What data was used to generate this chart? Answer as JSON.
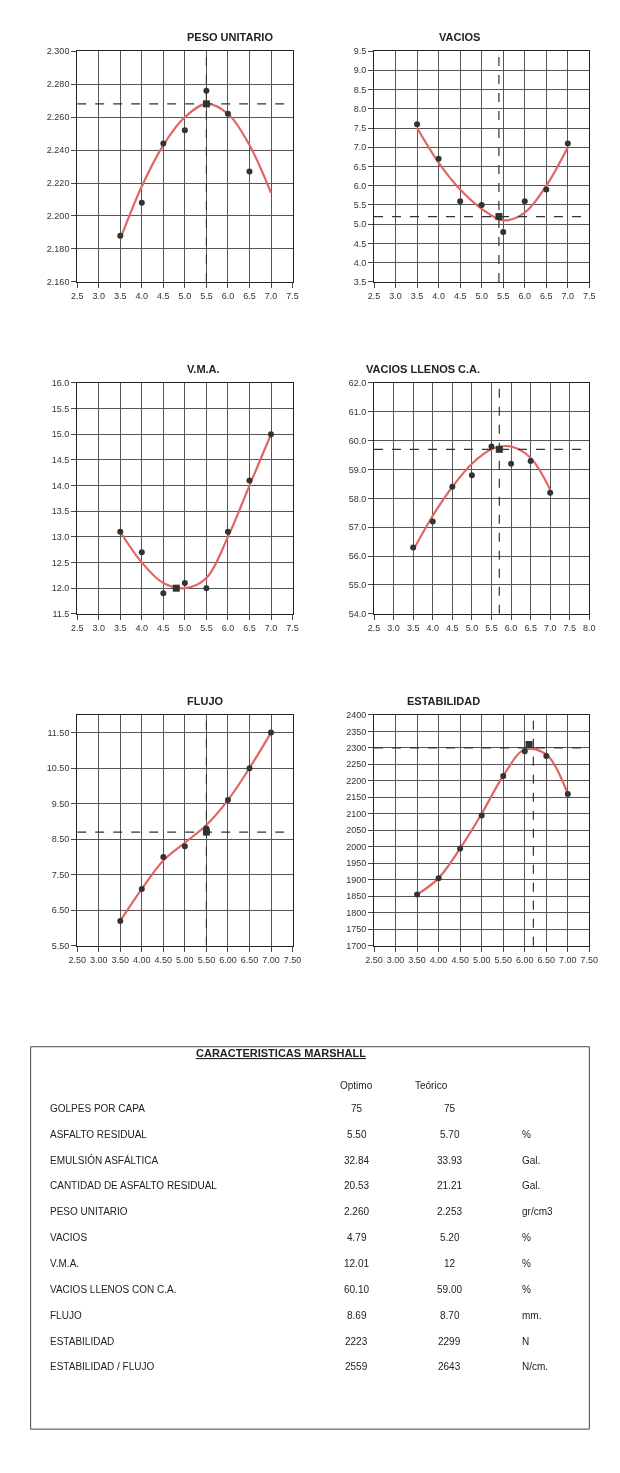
{
  "chart_data": [
    {
      "type": "scatter",
      "title": "PESO UNITARIO",
      "x": [
        3.5,
        4.0,
        4.5,
        5.0,
        5.5,
        6.0,
        6.5
      ],
      "xlim": [
        2.5,
        7.5
      ],
      "xticks": [
        {
          "value": 2.5,
          "label": "2.5"
        },
        {
          "value": 3,
          "label": "3.0"
        },
        {
          "value": 3.5,
          "label": "3.5"
        },
        {
          "value": 4,
          "label": "4.0"
        },
        {
          "value": 4.5,
          "label": "4.5"
        },
        {
          "value": 5,
          "label": "5.0"
        },
        {
          "value": 5.5,
          "label": "5.5"
        },
        {
          "value": 6,
          "label": "6.0"
        },
        {
          "value": 6.5,
          "label": "6.5"
        },
        {
          "value": 7,
          "label": "7.0"
        },
        {
          "value": 7.5,
          "label": "7.5"
        }
      ],
      "ylim": [
        2.16,
        2.3
      ],
      "yticks": [
        {
          "value": 2.16,
          "label": "2.160"
        },
        {
          "value": 2.18,
          "label": "2.180"
        },
        {
          "value": 2.2,
          "label": "2.200"
        },
        {
          "value": 2.22,
          "label": "2.220"
        },
        {
          "value": 2.24,
          "label": "2.240"
        },
        {
          "value": 2.26,
          "label": "2.260"
        },
        {
          "value": 2.28,
          "label": "2.280"
        },
        {
          "value": 2.3,
          "label": "2.300"
        }
      ],
      "grid": true,
      "series": [
        {
          "type": "line",
          "color": "#e06666",
          "x": [
            3.5,
            4.0,
            4.5,
            5.0,
            5.5,
            6.0,
            6.5,
            7.0
          ],
          "values": [
            2.186,
            2.218,
            2.243,
            2.26,
            2.268,
            2.262,
            2.243,
            2.214
          ],
          "marker": "none"
        },
        {
          "type": "scatter",
          "color": "#333333",
          "values": [
            2.188,
            2.208,
            2.244,
            2.252,
            2.276,
            2.262,
            2.227
          ],
          "marker": "circle"
        },
        {
          "type": "scatter",
          "color": "#333333",
          "x": [
            5.5
          ],
          "values": [
            2.268
          ],
          "marker": "square"
        }
      ],
      "ref_lines": [
        {
          "axis": "y",
          "value": 2.268,
          "line_style": "dashed",
          "color": "#333333"
        },
        {
          "axis": "x",
          "value": 5.5,
          "line_style": "dashed",
          "color": "#333333"
        }
      ]
    },
    {
      "type": "scatter",
      "title": "VACIOS",
      "x": [
        3.5,
        4.0,
        4.5,
        5.0,
        5.5,
        6.0,
        6.5,
        7.0
      ],
      "xlim": [
        2.5,
        7.5
      ],
      "xticks": [
        {
          "value": 2.5,
          "label": "2.5"
        },
        {
          "value": 3,
          "label": "3.0"
        },
        {
          "value": 3.5,
          "label": "3.5"
        },
        {
          "value": 4,
          "label": "4.0"
        },
        {
          "value": 4.5,
          "label": "4.5"
        },
        {
          "value": 5,
          "label": "5.0"
        },
        {
          "value": 5.5,
          "label": "5.5"
        },
        {
          "value": 6,
          "label": "6.0"
        },
        {
          "value": 6.5,
          "label": "6.5"
        },
        {
          "value": 7,
          "label": "7.0"
        },
        {
          "value": 7.5,
          "label": "7.5"
        }
      ],
      "ylim": [
        3.5,
        9.5
      ],
      "yticks": [
        {
          "value": 3.5,
          "label": "3.5"
        },
        {
          "value": 4,
          "label": "4.0"
        },
        {
          "value": 4.5,
          "label": "4.5"
        },
        {
          "value": 5,
          "label": "5.0"
        },
        {
          "value": 5.5,
          "label": "5.5"
        },
        {
          "value": 6,
          "label": "6.0"
        },
        {
          "value": 6.5,
          "label": "6.5"
        },
        {
          "value": 7,
          "label": "7.0"
        },
        {
          "value": 7.5,
          "label": "7.5"
        },
        {
          "value": 8,
          "label": "8.0"
        },
        {
          "value": 8.5,
          "label": "8.5"
        },
        {
          "value": 9,
          "label": "9.0"
        },
        {
          "value": 9.5,
          "label": "9.5"
        }
      ],
      "grid": true,
      "series": [
        {
          "type": "line",
          "color": "#e06666",
          "x": [
            3.5,
            4.0,
            4.5,
            5.0,
            5.5,
            6.0,
            6.5,
            7.0
          ],
          "values": [
            7.5,
            6.6,
            5.9,
            5.4,
            5.1,
            5.3,
            6.0,
            7.0
          ],
          "marker": "none"
        },
        {
          "type": "scatter",
          "color": "#333333",
          "values": [
            7.6,
            6.7,
            5.6,
            5.5,
            4.8,
            5.6,
            5.9,
            7.1
          ],
          "marker": "circle"
        },
        {
          "type": "scatter",
          "color": "#333333",
          "x": [
            5.4
          ],
          "values": [
            5.2
          ],
          "marker": "square"
        }
      ],
      "ref_lines": [
        {
          "axis": "y",
          "value": 5.2,
          "line_style": "dashed",
          "color": "#333333"
        },
        {
          "axis": "x",
          "value": 5.4,
          "line_style": "dashed",
          "color": "#333333"
        }
      ]
    },
    {
      "type": "scatter",
      "title": "V.M.A.",
      "x": [
        3.5,
        4.0,
        4.5,
        5.0,
        5.5,
        6.0,
        6.5,
        7.0
      ],
      "xlim": [
        2.5,
        7.5
      ],
      "xticks": [
        {
          "value": 2.5,
          "label": "2.5"
        },
        {
          "value": 3,
          "label": "3.0"
        },
        {
          "value": 3.5,
          "label": "3.5"
        },
        {
          "value": 4,
          "label": "4.0"
        },
        {
          "value": 4.5,
          "label": "4.5"
        },
        {
          "value": 5,
          "label": "5.0"
        },
        {
          "value": 5.5,
          "label": "5.5"
        },
        {
          "value": 6,
          "label": "6.0"
        },
        {
          "value": 6.5,
          "label": "6.5"
        },
        {
          "value": 7,
          "label": "7.0"
        },
        {
          "value": 7.5,
          "label": "7.5"
        }
      ],
      "ylim": [
        11.5,
        16.0
      ],
      "yticks": [
        {
          "value": 11.5,
          "label": "11.5"
        },
        {
          "value": 12,
          "label": "12.0"
        },
        {
          "value": 12.5,
          "label": "12.5"
        },
        {
          "value": 13,
          "label": "13.0"
        },
        {
          "value": 13.5,
          "label": "13.5"
        },
        {
          "value": 14,
          "label": "14.0"
        },
        {
          "value": 14.5,
          "label": "14.5"
        },
        {
          "value": 15,
          "label": "15.0"
        },
        {
          "value": 15.5,
          "label": "15.5"
        },
        {
          "value": 16,
          "label": "16.0"
        }
      ],
      "grid": true,
      "series": [
        {
          "type": "line",
          "color": "#e06666",
          "x": [
            3.5,
            4.0,
            4.5,
            5.0,
            5.5,
            6.0,
            6.5,
            7.0
          ],
          "values": [
            13.1,
            12.5,
            12.1,
            12.0,
            12.2,
            13.0,
            14.0,
            15.0
          ],
          "marker": "none"
        },
        {
          "type": "scatter",
          "color": "#333333",
          "values": [
            13.1,
            12.7,
            11.9,
            12.1,
            12.0,
            13.1,
            14.1,
            15.0
          ],
          "marker": "circle"
        },
        {
          "type": "scatter",
          "color": "#333333",
          "x": [
            4.8
          ],
          "values": [
            12.0
          ],
          "marker": "square"
        }
      ]
    },
    {
      "type": "scatter",
      "title": "VACIOS LLENOS C.A.",
      "x": [
        3.5,
        4.0,
        4.5,
        5.0,
        5.5,
        6.0,
        6.5,
        7.0
      ],
      "xlim": [
        2.5,
        8.0
      ],
      "xticks": [
        {
          "value": 2.5,
          "label": "2.5"
        },
        {
          "value": 3,
          "label": "3.0"
        },
        {
          "value": 3.5,
          "label": "3.5"
        },
        {
          "value": 4,
          "label": "4.0"
        },
        {
          "value": 4.5,
          "label": "4.5"
        },
        {
          "value": 5,
          "label": "5.0"
        },
        {
          "value": 5.5,
          "label": "5.5"
        },
        {
          "value": 6,
          "label": "6.0"
        },
        {
          "value": 6.5,
          "label": "6.5"
        },
        {
          "value": 7,
          "label": "7.0"
        },
        {
          "value": 7.5,
          "label": "7.5"
        },
        {
          "value": 8,
          "label": "8.0"
        }
      ],
      "ylim": [
        54.0,
        62.0
      ],
      "yticks": [
        {
          "value": 54,
          "label": "54.0"
        },
        {
          "value": 55,
          "label": "55.0"
        },
        {
          "value": 56,
          "label": "56.0"
        },
        {
          "value": 57,
          "label": "57.0"
        },
        {
          "value": 58,
          "label": "58.0"
        },
        {
          "value": 59,
          "label": "59.0"
        },
        {
          "value": 60,
          "label": "60.0"
        },
        {
          "value": 61,
          "label": "61.0"
        },
        {
          "value": 62,
          "label": "62.0"
        }
      ],
      "grid": true,
      "series": [
        {
          "type": "line",
          "color": "#e06666",
          "x": [
            3.5,
            4.0,
            4.5,
            5.0,
            5.5,
            6.0,
            6.5,
            7.0
          ],
          "values": [
            56.2,
            57.4,
            58.4,
            59.2,
            59.7,
            59.8,
            59.4,
            58.3
          ],
          "marker": "none"
        },
        {
          "type": "scatter",
          "color": "#333333",
          "values": [
            56.3,
            57.2,
            58.4,
            58.8,
            59.8,
            59.2,
            59.3,
            58.2
          ],
          "marker": "circle"
        },
        {
          "type": "scatter",
          "color": "#333333",
          "x": [
            5.7
          ],
          "values": [
            59.7
          ],
          "marker": "square"
        }
      ],
      "ref_lines": [
        {
          "axis": "y",
          "value": 59.7,
          "line_style": "dashed",
          "color": "#333333"
        },
        {
          "axis": "x",
          "value": 5.7,
          "line_style": "dashed",
          "color": "#333333"
        }
      ]
    },
    {
      "type": "scatter",
      "title": "FLUJO",
      "x": [
        3.5,
        4.0,
        4.5,
        5.0,
        5.5,
        6.0,
        6.5,
        7.0
      ],
      "xlim": [
        2.5,
        7.5
      ],
      "xticks": [
        {
          "value": 2.5,
          "label": "2.50"
        },
        {
          "value": 3.0,
          "label": "3.00"
        },
        {
          "value": 3.5,
          "label": "3.50"
        },
        {
          "value": 4.0,
          "label": "4.00"
        },
        {
          "value": 4.5,
          "label": "4.50"
        },
        {
          "value": 5.0,
          "label": "5.00"
        },
        {
          "value": 5.5,
          "label": "5.50"
        },
        {
          "value": 6.0,
          "label": "6.00"
        },
        {
          "value": 6.5,
          "label": "6.50"
        },
        {
          "value": 7.0,
          "label": "7.00"
        },
        {
          "value": 7.5,
          "label": "7.50"
        }
      ],
      "ylim": [
        5.5,
        12.0
      ],
      "yticks": [
        {
          "value": 5.5,
          "label": "5.50"
        },
        {
          "value": 6.5,
          "label": "6.50"
        },
        {
          "value": 7.5,
          "label": "7.50"
        },
        {
          "value": 8.5,
          "label": "8.50"
        },
        {
          "value": 9.5,
          "label": "9.50"
        },
        {
          "value": 10.5,
          "label": "10.50"
        },
        {
          "value": 11.5,
          "label": "11.50"
        }
      ],
      "grid": true,
      "series": [
        {
          "type": "line",
          "color": "#e06666",
          "x": [
            3.5,
            4.0,
            4.5,
            5.0,
            5.5,
            6.0,
            6.5,
            7.0
          ],
          "values": [
            6.2,
            7.1,
            7.9,
            8.4,
            8.9,
            9.6,
            10.5,
            11.5
          ],
          "marker": "none"
        },
        {
          "type": "scatter",
          "color": "#333333",
          "values": [
            6.2,
            7.1,
            8.0,
            8.3,
            8.8,
            9.6,
            10.5,
            11.5
          ],
          "marker": "circle"
        },
        {
          "type": "scatter",
          "color": "#333333",
          "x": [
            5.5
          ],
          "values": [
            8.7
          ],
          "marker": "square"
        }
      ],
      "ref_lines": [
        {
          "axis": "y",
          "value": 8.7,
          "line_style": "dashed",
          "color": "#333333"
        },
        {
          "axis": "x",
          "value": 5.5,
          "line_style": "dashed",
          "color": "#333333"
        }
      ]
    },
    {
      "type": "scatter",
      "title": "ESTABILIDAD",
      "x": [
        3.5,
        4.0,
        4.5,
        5.0,
        5.5,
        6.0,
        6.5,
        7.0
      ],
      "xlim": [
        2.5,
        7.5
      ],
      "xticks": [
        {
          "value": 2.5,
          "label": "2.50"
        },
        {
          "value": 3.0,
          "label": "3.00"
        },
        {
          "value": 3.5,
          "label": "3.50"
        },
        {
          "value": 4.0,
          "label": "4.00"
        },
        {
          "value": 4.5,
          "label": "4.50"
        },
        {
          "value": 5.0,
          "label": "5.00"
        },
        {
          "value": 5.5,
          "label": "5.50"
        },
        {
          "value": 6.0,
          "label": "6.00"
        },
        {
          "value": 6.5,
          "label": "6.50"
        },
        {
          "value": 7.0,
          "label": "7.00"
        },
        {
          "value": 7.5,
          "label": "7.50"
        }
      ],
      "ylim": [
        1700,
        2400
      ],
      "yticks": [
        1700,
        1750,
        1800,
        1850,
        1900,
        1950,
        2000,
        2050,
        2100,
        2150,
        2200,
        2250,
        2300,
        2350,
        2400
      ],
      "grid": true,
      "series": [
        {
          "type": "line",
          "color": "#e06666",
          "x": [
            3.5,
            4.0,
            4.5,
            5.0,
            5.5,
            6.0,
            6.5,
            7.0
          ],
          "values": [
            1855,
            1905,
            1995,
            2100,
            2215,
            2295,
            2280,
            2160
          ],
          "marker": "none"
        },
        {
          "type": "scatter",
          "color": "#333333",
          "values": [
            1855,
            1905,
            1995,
            2095,
            2215,
            2290,
            2275,
            2160
          ],
          "marker": "circle"
        },
        {
          "type": "scatter",
          "color": "#333333",
          "x": [
            6.1
          ],
          "values": [
            2310
          ],
          "marker": "square"
        }
      ],
      "ref_lines": [
        {
          "axis": "y",
          "value": 2300,
          "line_style": "dashed",
          "color": "#333333"
        },
        {
          "axis": "x",
          "value": 6.2,
          "line_style": "dashed",
          "color": "#333333"
        }
      ]
    },
    {
      "type": "other",
      "title": "CARACTERISTICAS MARSHALL",
      "categories": [
        "GOLPES POR CAPA",
        "ASFALTO RESIDUAL",
        "EMULSIÓN ASFÁLTICA",
        "CANTIDAD DE ASFALTO RESIDUAL",
        "PESO UNITARIO",
        "VACIOS",
        "V.M.A.",
        "VACIOS LLENOS CON C.A.",
        "FLUJO",
        "ESTABILIDAD",
        "ESTABILIDAD / FLUJO"
      ],
      "series": [
        {
          "name": "Optimo",
          "values": [
            75,
            5.5,
            32.84,
            20.53,
            2.26,
            4.79,
            12.01,
            60.1,
            8.69,
            2223,
            2559
          ],
          "value_labels": [
            "75",
            "5.50",
            "32.84",
            "20.53",
            "2.260",
            "4.79",
            "12.01",
            "60.10",
            "8.69",
            "2223",
            "2559"
          ]
        },
        {
          "name": "Teórico",
          "values": [
            75,
            5.7,
            33.93,
            21.21,
            2.253,
            5.2,
            12,
            59,
            8.7,
            2299,
            2643
          ],
          "value_labels": [
            "75",
            "5.70",
            "33.93",
            "21.21",
            "2.253",
            "5.20",
            "12",
            "59.00",
            "8.70",
            "2299",
            "2643"
          ]
        }
      ],
      "annotations": [
        "%",
        "Gal.",
        "Gal.",
        "gr/cm3",
        "%",
        "%",
        "%",
        "mm.",
        "N",
        "N/cm."
      ]
    }
  ]
}
